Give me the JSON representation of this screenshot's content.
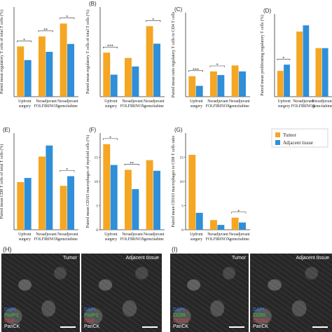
{
  "colors": {
    "tumor": "#f5a623",
    "adjacent": "#2f8fd8",
    "dapi": "#3a7bff",
    "foxp3": "#2ecc40",
    "cd8": "#2ecc40",
    "cd4": "#ff3b3b",
    "cd163": "#ff3b3b"
  },
  "legend": {
    "tumor": "Tumor",
    "adjacent": "Adjacent tissue"
  },
  "chart_data": [
    {
      "letter": "",
      "type": "bar",
      "ylabel": "Paired mean regulatory T cells of total T cells (%)",
      "categories": [
        "Upfront surgery",
        "Neoadjuvant FOLFIRINOX",
        "Neoadjuvant gemcitabine"
      ],
      "series": [
        {
          "name": "Tumor",
          "values": [
            14.0,
            16.8,
            20.4
          ]
        },
        {
          "name": "Adjacent tissue",
          "values": [
            10.2,
            12.5,
            14.7
          ]
        }
      ],
      "ylim": [
        0,
        25
      ],
      "sig": [
        "*",
        "**",
        "*"
      ]
    },
    {
      "letter": "(B)",
      "type": "bar",
      "ylabel": "Paired mean regulatory T cells of total T cells (%)",
      "categories": [
        "Upfront surgery",
        "Neoadjuvant FOLFIRINOX",
        "Neoadjuvant gemcitabine"
      ],
      "series": [
        {
          "name": "Tumor",
          "values": [
            10.8,
            9.5,
            17.3
          ]
        },
        {
          "name": "Adjacent tissue",
          "values": [
            5.4,
            7.4,
            13.0
          ]
        }
      ],
      "ylim": [
        0,
        22
      ],
      "sig": [
        "***",
        "",
        "*"
      ]
    },
    {
      "letter": "(C)",
      "type": "bar",
      "ylabel": "Paired mean ratio regulatory T cells to CD4 T cells",
      "categories": [
        "Upfront surgery",
        "Neoadjuvant FOLFIRINOX",
        "Neoadjuvant gemcitabine"
      ],
      "series": [
        {
          "name": "Tumor",
          "values": [
            0.17,
            0.21,
            0.26
          ]
        },
        {
          "name": "Adjacent tissue",
          "values": [
            0.09,
            0.18,
            0.21
          ]
        }
      ],
      "ylim": [
        0,
        0.7
      ],
      "sig": [
        "***",
        "*",
        ""
      ]
    },
    {
      "letter": "(D)",
      "type": "bar",
      "ylabel": "Paired mean proliferating regulatory T cells (%)",
      "categories": [
        "Upfront surgery",
        "Neoadjuvant FOLFIRINOX",
        "Neoadjuvant gemcitabine"
      ],
      "series": [
        {
          "name": "Tumor",
          "values": [
            0.25,
            0.63,
            0.47
          ]
        },
        {
          "name": "Adjacent tissue",
          "values": [
            0.31,
            0.69,
            0.47
          ]
        }
      ],
      "ylim": [
        0,
        0.8
      ],
      "sig": [
        "*",
        "",
        ""
      ]
    },
    {
      "letter": "(E)",
      "type": "bar",
      "ylabel": "Paired mean CD8 T cells of total T cells (%)",
      "categories": [
        "Upfront surgery",
        "Neoadjuvant FOLFIRINOX",
        "Neoadjuvant gemcitabine"
      ],
      "series": [
        {
          "name": "Tumor",
          "values": [
            34.5,
            53.0,
            31.8
          ]
        },
        {
          "name": "Adjacent tissue",
          "values": [
            37.5,
            61.0,
            38.8
          ]
        }
      ],
      "ylim": [
        0,
        70
      ],
      "sig": [
        "",
        "",
        "*"
      ]
    },
    {
      "letter": "(F)",
      "type": "bar",
      "ylabel": "Paired mean CD163 macrophages of myeloid cells (%)",
      "categories": [
        "Upfront surgery",
        "Neoadjuvant FOLFIRINOX",
        "Neoadjuvant gemcitabine"
      ],
      "series": [
        {
          "name": "Tumor",
          "values": [
            17.7,
            12.4,
            14.4
          ]
        },
        {
          "name": "Adjacent tissue",
          "values": [
            13.4,
            8.4,
            12.2
          ]
        }
      ],
      "ylim": [
        0,
        20
      ],
      "yticks": [
        0,
        5,
        10,
        15
      ],
      "sig": [
        "*",
        "**",
        ""
      ]
    },
    {
      "letter": "(G)",
      "type": "bar",
      "ylabel": "Paired mean CD163 macrophages to CD8 T cells ratio",
      "categories": [
        "Upfront surgery",
        "Neoadjuvant FOLFIRINOX",
        "Neoadjuvant gemcitabine"
      ],
      "series": [
        {
          "name": "Tumor",
          "values": [
            15.5,
            2.0,
            2.5
          ]
        },
        {
          "name": "Adjacent tissue",
          "values": [
            3.5,
            1.0,
            1.5
          ]
        }
      ],
      "ylim": [
        0,
        20
      ],
      "yticks": [
        0,
        5,
        10,
        15
      ],
      "sig": [
        "",
        "",
        "*"
      ]
    }
  ],
  "micrographs": [
    {
      "letter": "(H)",
      "label": "Tumor",
      "markers": [
        "DAPI",
        "FoxP3",
        "CD4",
        "PanCK"
      ]
    },
    {
      "letter": "",
      "label": "Adjacent tissue",
      "markers": [
        "DAPI",
        "FoxP3",
        "CD4",
        "PanCK"
      ]
    },
    {
      "letter": "(I)",
      "label": "Tumor",
      "markers": [
        "DAPI",
        "CD68",
        "CD163",
        "PanCK"
      ]
    },
    {
      "letter": "",
      "label": "Adjacent tissue",
      "markers": [
        "DAPI",
        "CD68",
        "CD163",
        "PanCK"
      ]
    }
  ]
}
